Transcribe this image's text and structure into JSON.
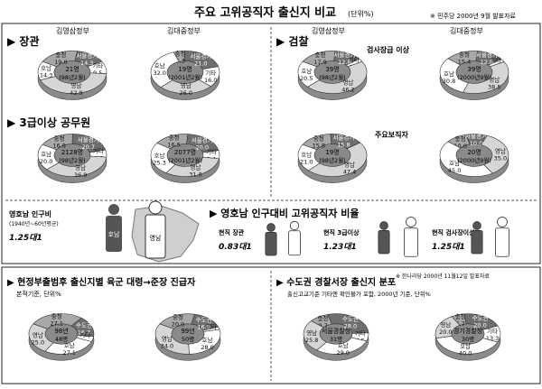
{
  "header": {
    "title": "주요 고위공직자 출신지 비교",
    "unit": "(단위%)",
    "source": "※ 민주당 2000년 9월 발표자료"
  },
  "sections": {
    "minister": "장관",
    "prosecution": "검찰",
    "grade3": "3급이상 공무원",
    "main_posts": "주요보직자",
    "population": "영호남 인구대비 고위공직자 비율",
    "army": "현정부출범후 출신지별 육군 대령→준장 진급자",
    "police": "수도권 경찰서장 출신지 분포"
  },
  "labels": {
    "kys": "김영삼정부",
    "kdj": "김대중정부",
    "seoul": "서울경기",
    "chung": "충청",
    "honam": "호남",
    "yeongnam": "영남",
    "gita": "기타",
    "sudo": "수도권",
    "geomsa": "검사장급 이상",
    "honam_short": "호남",
    "yeongnam_short": "영남"
  },
  "population": {
    "label": "영호남 인구비",
    "note": "(1940년~60년평균)",
    "ratio": "1.25대1",
    "current_minister": "현직 장관",
    "current_minister_ratio": "0.83대1",
    "current_grade3": "현직 3급이상",
    "current_grade3_ratio": "1.23대1",
    "current_geomsa": "현직 검사장이상",
    "current_geomsa_ratio": "1.25대1"
  },
  "army": {
    "note": "본적기준, 단위%",
    "source": "※ 한나라당 2000년 11월12일 발표자료",
    "left_center": "98년 48명",
    "right_center": "99년 50명"
  },
  "police": {
    "note": "출신고교기준 기타엔 확인불가 포함, 2000년 기준, 단위%",
    "left_center_1": "서울경찰청",
    "left_center_2": "31명",
    "right_center_1": "경기경찰청",
    "right_center_2": "30명"
  },
  "chart_data": [
    {
      "type": "pie",
      "title": "장관 김영삼정부",
      "center": "21명 (98년2월)",
      "categories": [
        "충청",
        "서울경기",
        "기타",
        "영남",
        "호남"
      ],
      "values": [
        19.0,
        14.3,
        9.5,
        42.9,
        14.3
      ]
    },
    {
      "type": "pie",
      "title": "장관 김대중정부",
      "center": "19명 (2001년2월)",
      "categories": [
        "충청",
        "서울경기",
        "기타",
        "영남",
        "호남"
      ],
      "values": [
        5.3,
        21.0,
        16.0,
        26.0,
        32.0
      ]
    },
    {
      "type": "pie",
      "title": "검찰 김영삼정부",
      "center": "39명 (98년2월)",
      "categories": [
        "충청",
        "서울경기",
        "기타",
        "영남",
        "호남"
      ],
      "values": [
        17.9,
        12.8,
        2.6,
        46.2,
        20.5
      ]
    },
    {
      "type": "pie",
      "title": "검찰 김대중정부",
      "center": "39명 (2000년9월)",
      "categories": [
        "충청",
        "서울경기",
        "기타",
        "영남",
        "호남"
      ],
      "values": [
        15.4,
        12.8,
        2.5,
        38.5,
        30.8
      ]
    },
    {
      "type": "pie",
      "title": "3급이상 공무원 김영삼정부",
      "center": "2128명 (98년2월)",
      "categories": [
        "충청",
        "서울경기",
        "기타",
        "영남",
        "호남"
      ],
      "values": [
        16.8,
        20.7,
        5.6,
        36.9,
        20.0
      ]
    },
    {
      "type": "pie",
      "title": "3급이상 공무원 김대중정부",
      "center": "2077명 (2001년2월)",
      "categories": [
        "충청",
        "서울경기",
        "기타",
        "영남",
        "호남"
      ],
      "values": [
        16.5,
        20.0,
        6.4,
        31.8,
        25.3
      ]
    },
    {
      "type": "pie",
      "title": "주요보직자 김영삼정부",
      "center": "19명 (98년2월)",
      "categories": [
        "충청",
        "서울경기",
        "영남",
        "호남"
      ],
      "values": [
        15.8,
        15.8,
        47.4,
        21.0
      ]
    },
    {
      "type": "pie",
      "title": "주요보직자 김대중정부",
      "center": "20명 (2000년9월)",
      "categories": [
        "충청",
        "서울경기",
        "영남",
        "호남"
      ],
      "values": [
        10.0,
        10.0,
        35.0,
        45.0
      ]
    },
    {
      "type": "pie",
      "title": "육군 98년",
      "center": "98년 48명",
      "categories": [
        "충청",
        "수도권",
        "기타",
        "호남",
        "영남"
      ],
      "values": [
        27.1,
        16.7,
        4.1,
        27.1,
        25.0
      ]
    },
    {
      "type": "pie",
      "title": "육군 99년",
      "center": "99년 50명",
      "categories": [
        "충청",
        "수도권",
        "기타",
        "호남",
        "영남"
      ],
      "values": [
        20.0,
        16.0,
        2.0,
        28.0,
        34.0
      ]
    },
    {
      "type": "pie",
      "title": "서울경찰청",
      "center": "서울경찰청 31명",
      "categories": [
        "충청",
        "수도권",
        "기타",
        "호남",
        "영남"
      ],
      "values": [
        9.7,
        28.0,
        6.5,
        29.0,
        25.8
      ]
    },
    {
      "type": "pie",
      "title": "경기경찰청",
      "center": "경기경찰청 30명",
      "categories": [
        "충청",
        "수도권",
        "기타",
        "호남",
        "영남"
      ],
      "values": [
        6.7,
        20.0,
        13.3,
        40.0,
        20.0
      ]
    }
  ],
  "colors": {
    "dark": "#6e6e6e",
    "mid": "#a8a8a8",
    "light": "#d6d6d6",
    "white": "#ffffff"
  }
}
